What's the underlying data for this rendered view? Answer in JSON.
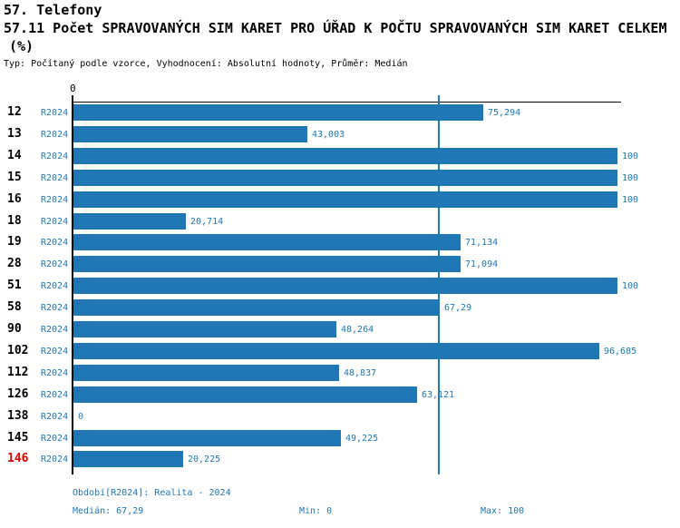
{
  "header": {
    "section_title": "57. Telefony",
    "indicator_title": "57.11 Počet SPRAVOVANÝCH SIM KARET PRO ÚŘAD K POČTU SPRAVOVANÝCH SIM KARET CELKEM",
    "indicator_unit": "(%)",
    "meta": "Typ: Počítaný podle vzorce, Vyhodnocení: Absolutní hodnoty, Průměr: Medián"
  },
  "chart_data": {
    "type": "bar",
    "orientation": "horizontal",
    "title": "57.11 Počet SPRAVOVANÝCH SIM KARET PRO ÚŘAD K POČTU SPRAVOVANÝCH SIM KARET CELKEM (%)",
    "categories": [
      "12",
      "13",
      "14",
      "15",
      "16",
      "18",
      "19",
      "28",
      "51",
      "58",
      "90",
      "102",
      "112",
      "126",
      "138",
      "145",
      "146"
    ],
    "series_label": "R2024",
    "values": [
      75.294,
      43.003,
      100,
      100,
      100,
      20.714,
      71.134,
      71.094,
      100,
      67.29,
      48.264,
      96.685,
      48.837,
      63.121,
      0,
      49.225,
      20.225
    ],
    "value_labels": [
      "75,294",
      "43,003",
      "100",
      "100",
      "100",
      "20,714",
      "71,134",
      "71,094",
      "100",
      "67,29",
      "48,264",
      "96,685",
      "48,837",
      "63,121",
      "0",
      "49,225",
      "20,225"
    ],
    "xlim": [
      0,
      100
    ],
    "axis_zero_label": "0",
    "median": 67.29,
    "highlighted_category": "146",
    "grid": false,
    "legend": "none",
    "bar_color": "#1f77b4",
    "median_line_color": "#1f77b4",
    "series_label_color": "#1f77b4",
    "value_label_color": "#1f77b4",
    "row_label_color": "#000000",
    "highlight_color": "#dd0000"
  },
  "footer": {
    "period": "Období[R2024]: Realita - 2024",
    "median": "Medián: 67,29",
    "min": "Min: 0",
    "max": "Max: 100"
  }
}
